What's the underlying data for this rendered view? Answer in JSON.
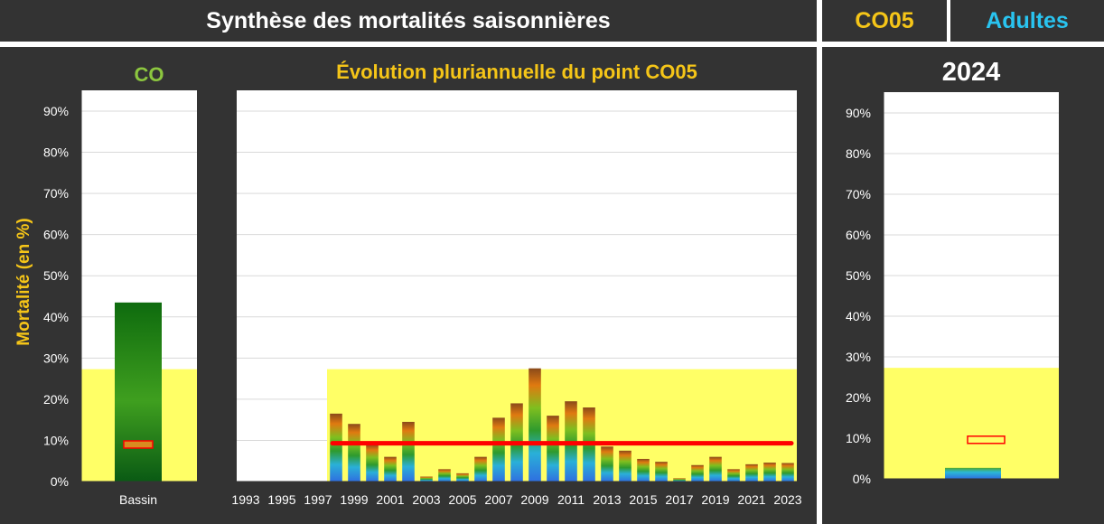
{
  "header": {
    "title": "Synthèse des mortalités saisonnières",
    "station": "CO05",
    "category": "Adultes"
  },
  "colors": {
    "dark_bg": "#333333",
    "gold": "#f5c518",
    "green_title": "#8cc63f",
    "cyan": "#29c4f0",
    "reference_band": "#ffff66",
    "mean_line": "#ff0000"
  },
  "left_panel": {
    "title": "CO"
  },
  "middle_panel": {
    "title": "Évolution pluriannuelle du point CO05"
  },
  "right_panel": {
    "title": "2024"
  },
  "y_axis": {
    "label": "Mortalité (en %)",
    "ticks": [
      "0%",
      "10%",
      "20%",
      "30%",
      "40%",
      "50%",
      "60%",
      "70%",
      "80%",
      "90%"
    ]
  },
  "chart_data": [
    {
      "type": "bar",
      "categories": [
        "Bassin"
      ],
      "values": [
        43.5
      ],
      "reference_band": [
        0,
        27.3
      ],
      "marker": 9.0,
      "ylim": [
        0,
        95
      ],
      "grid": true
    },
    {
      "type": "bar",
      "x_tick_labels": [
        "1993",
        "1995",
        "1997",
        "1999",
        "2001",
        "2003",
        "2005",
        "2007",
        "2009",
        "2011",
        "2013",
        "2015",
        "2017",
        "2019",
        "2021",
        "2023"
      ],
      "categories": [
        "1993",
        "1994",
        "1995",
        "1996",
        "1997",
        "1998",
        "1999",
        "2000",
        "2001",
        "2002",
        "2003",
        "2004",
        "2005",
        "2006",
        "2007",
        "2008",
        "2009",
        "2010",
        "2011",
        "2012",
        "2013",
        "2014",
        "2015",
        "2016",
        "2017",
        "2018",
        "2019",
        "2020",
        "2021",
        "2022",
        "2023"
      ],
      "values": [
        0,
        0,
        0,
        0,
        0,
        16.5,
        14,
        9,
        6,
        14.5,
        1.2,
        3,
        2,
        6,
        15.5,
        19,
        27.5,
        16,
        19.5,
        18,
        8.5,
        7.5,
        5.5,
        4.8,
        0.8,
        4,
        6,
        3,
        4.2,
        4.6,
        4.5
      ],
      "reference_band": {
        "from": "1998",
        "to": "2023",
        "range": [
          0,
          27.3
        ]
      },
      "mean_line": {
        "from": "1998",
        "to": "2023",
        "value": 9.3
      },
      "ylim": [
        0,
        95
      ],
      "grid": true
    },
    {
      "type": "bar",
      "categories": [
        "2024"
      ],
      "values": [
        2.7
      ],
      "reference_band": [
        0,
        27.3
      ],
      "marker": 9.6,
      "ylim": [
        0,
        95
      ],
      "grid": true
    }
  ]
}
